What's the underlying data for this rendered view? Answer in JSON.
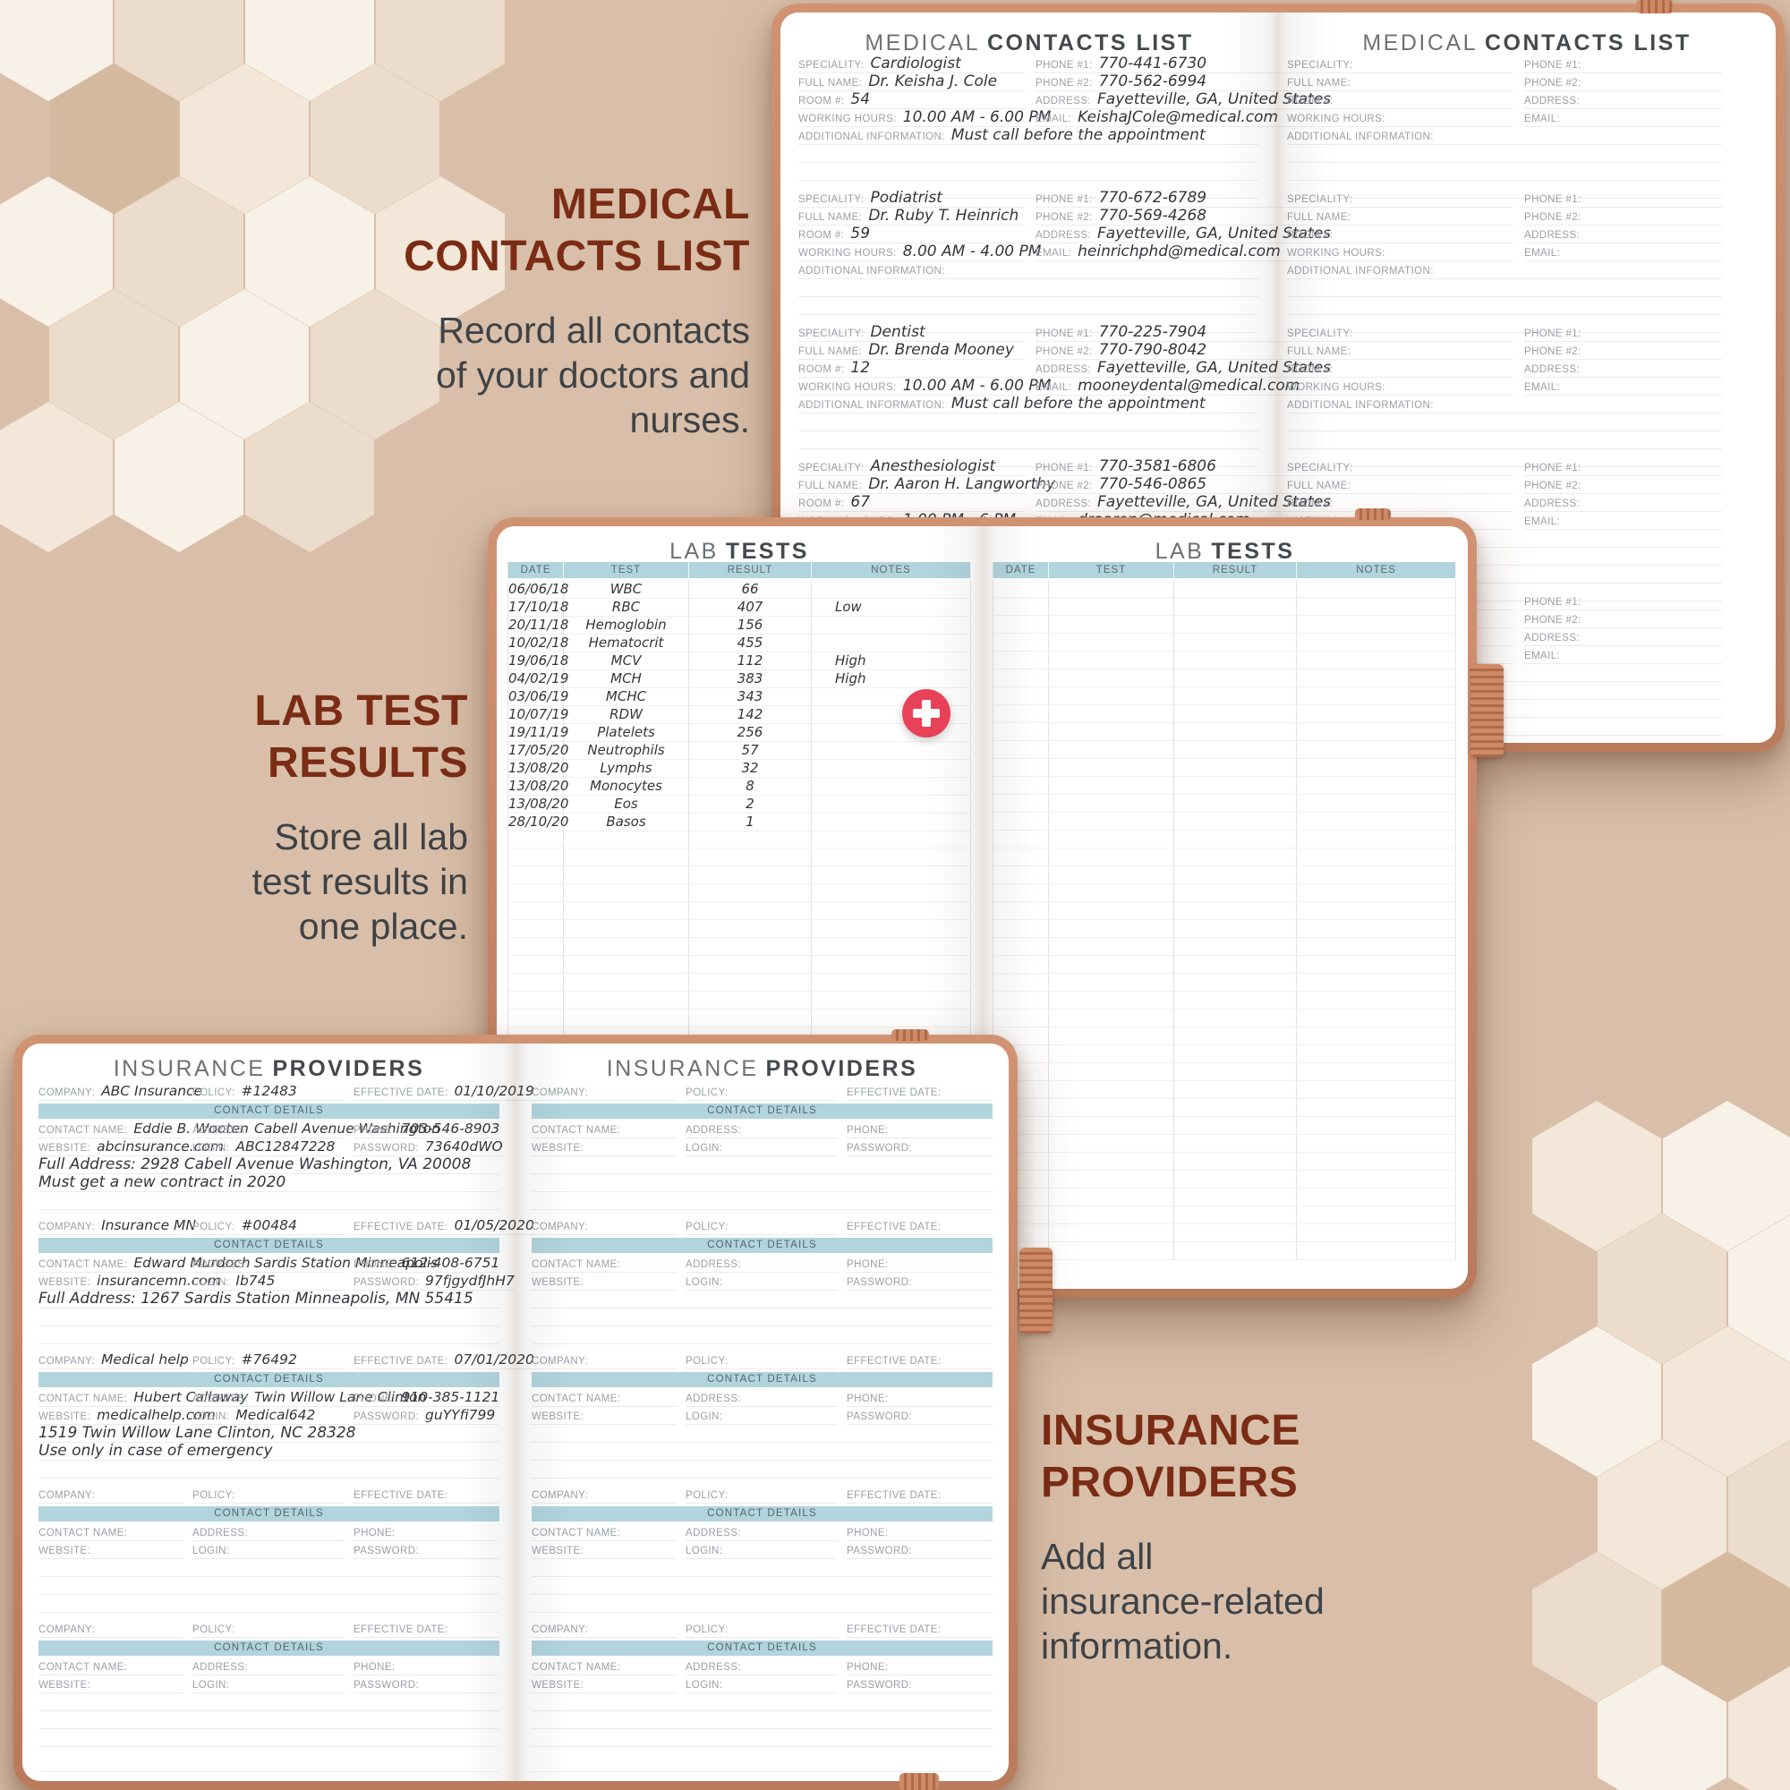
{
  "marketing": {
    "contacts": {
      "heading": "MEDICAL\nCONTACTS LIST",
      "description": "Record all contacts\nof your doctors and\nnurses."
    },
    "lab": {
      "heading": "LAB TEST\nRESULTS",
      "description": "Store all lab\ntest results in\none place."
    },
    "insurance": {
      "heading": "INSURANCE\nPROVIDERS",
      "description": "Add all\ninsurance-related\ninformation."
    }
  },
  "contacts_page": {
    "title_regular": "MEDICAL",
    "title_bold": "CONTACTS LIST",
    "labels": {
      "speciality": "SPECIALITY:",
      "full_name": "FULL NAME:",
      "room": "ROOM #:",
      "working_hours": "WORKING HOURS:",
      "additional_information": "ADDITIONAL INFORMATION:",
      "phone1": "PHONE #1:",
      "phone2": "PHONE #2:",
      "address": "ADDRESS:",
      "email": "EMAIL:"
    },
    "entries": [
      {
        "speciality": "Cardiologist",
        "full_name": "Dr. Keisha J. Cole",
        "room": "54",
        "working_hours": "10.00 AM - 6.00 PM",
        "phone1": "770-441-6730",
        "phone2": "770-562-6994",
        "address": "Fayetteville, GA, United States",
        "email": "KeishaJCole@medical.com",
        "additional_information": "Must call before the appointment"
      },
      {
        "speciality": "Podiatrist",
        "full_name": "Dr. Ruby T. Heinrich",
        "room": "59",
        "working_hours": "8.00 AM - 4.00 PM",
        "phone1": "770-672-6789",
        "phone2": "770-569-4268",
        "address": "Fayetteville, GA, United States",
        "email": "heinrichphd@medical.com",
        "additional_information": ""
      },
      {
        "speciality": "Dentist",
        "full_name": "Dr. Brenda Mooney",
        "room": "12",
        "working_hours": "10.00 AM - 6.00 PM",
        "phone1": "770-225-7904",
        "phone2": "770-790-8042",
        "address": "Fayetteville, GA, United States",
        "email": "mooneydental@medical.com",
        "additional_information": "Must call before the appointment"
      },
      {
        "speciality": "Anesthesiologist",
        "full_name": "Dr. Aaron H. Langworthy",
        "room": "67",
        "working_hours": "1.00 PM - 6 PM",
        "phone1": "770-3581-6806",
        "phone2": "770-546-0865",
        "address": "Fayetteville, GA, United States",
        "email": "draaron@medical.com",
        "additional_information": ""
      }
    ]
  },
  "lab_page": {
    "title_regular": "LAB",
    "title_bold": "TESTS",
    "columns": [
      "DATE",
      "TEST",
      "RESULT",
      "NOTES"
    ],
    "rows": [
      {
        "date": "06/06/18",
        "test": "WBC",
        "result": "66",
        "notes": ""
      },
      {
        "date": "17/10/18",
        "test": "RBC",
        "result": "407",
        "notes": "Low"
      },
      {
        "date": "20/11/18",
        "test": "Hemoglobin",
        "result": "156",
        "notes": ""
      },
      {
        "date": "10/02/18",
        "test": "Hematocrit",
        "result": "455",
        "notes": ""
      },
      {
        "date": "19/06/18",
        "test": "MCV",
        "result": "112",
        "notes": "High"
      },
      {
        "date": "04/02/19",
        "test": "MCH",
        "result": "383",
        "notes": "High"
      },
      {
        "date": "03/06/19",
        "test": "MCHC",
        "result": "343",
        "notes": ""
      },
      {
        "date": "10/07/19",
        "test": "RDW",
        "result": "142",
        "notes": ""
      },
      {
        "date": "19/11/19",
        "test": "Platelets",
        "result": "256",
        "notes": ""
      },
      {
        "date": "17/05/20",
        "test": "Neutrophils",
        "result": "57",
        "notes": ""
      },
      {
        "date": "13/08/20",
        "test": "Lymphs",
        "result": "32",
        "notes": ""
      },
      {
        "date": "13/08/20",
        "test": "Monocytes",
        "result": "8",
        "notes": ""
      },
      {
        "date": "13/08/20",
        "test": "Eos",
        "result": "2",
        "notes": ""
      },
      {
        "date": "28/10/20",
        "test": "Basos",
        "result": "1",
        "notes": ""
      }
    ]
  },
  "insurance_page": {
    "title_regular": "INSURANCE",
    "title_bold": "PROVIDERS",
    "contact_details_label": "CONTACT DETAILS",
    "labels": {
      "company": "COMPANY:",
      "policy": "POLICY:",
      "effective_date": "EFFECTIVE DATE:",
      "contact_name": "CONTACT NAME:",
      "address": "ADDRESS:",
      "phone": "PHONE:",
      "website": "WEBSITE:",
      "login": "LOGIN:",
      "password": "PASSWORD:"
    },
    "entries": [
      {
        "company": "ABC Insurance",
        "policy": "#12483",
        "effective_date": "01/10/2019",
        "contact_name": "Eddie B. Wooten",
        "address": "Cabell Avenue Washington",
        "phone": "703-546-8903",
        "website": "abcinsurance.com",
        "login": "ABC12847228",
        "password": "73640dWO",
        "notes": [
          "Full Address: 2928 Cabell Avenue Washington, VA 20008",
          "Must get a new contract in 2020"
        ]
      },
      {
        "company": "Insurance MN",
        "policy": "#00484",
        "effective_date": "01/05/2020",
        "contact_name": "Edward Murdoch",
        "address": "Sardis Station Minneapolis",
        "phone": "612-408-6751",
        "website": "insurancemn.com",
        "login": "Ib745",
        "password": "97fjgydfJhH7",
        "notes": [
          "Full Address: 1267 Sardis Station Minneapolis, MN 55415"
        ]
      },
      {
        "company": "Medical help",
        "policy": "#76492",
        "effective_date": "07/01/2020",
        "contact_name": "Hubert Callaway",
        "address": "Twin Willow Lane Clinton",
        "phone": "910-385-1121",
        "website": "medicalhelp.com",
        "login": "Medical642",
        "password": "guYYfi799",
        "notes": [
          "1519 Twin Willow Lane Clinton, NC 28328",
          "Use only in case of emergency"
        ]
      }
    ]
  },
  "icons": {
    "plus_badge": "medical-plus-icon"
  },
  "colors": {
    "background": "#d9bfa9",
    "heading": "#7b2c14",
    "body_text": "#3e4246",
    "band_blue": "#b1d4dd",
    "cover_terracotta": "#c6886a",
    "badge_red": "#e84258"
  }
}
